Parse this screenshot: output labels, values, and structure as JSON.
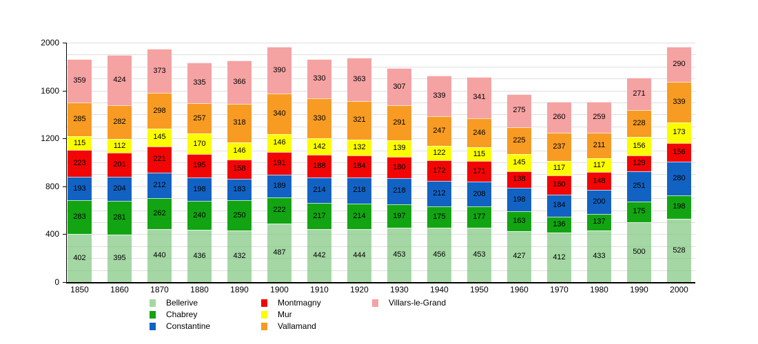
{
  "chart_data": {
    "type": "bar",
    "stacked": true,
    "title": "",
    "xlabel": "",
    "ylabel": "",
    "categories": [
      "1850",
      "1860",
      "1870",
      "1880",
      "1890",
      "1900",
      "1910",
      "1920",
      "1930",
      "1940",
      "1950",
      "1960",
      "1970",
      "1980",
      "1990",
      "2000"
    ],
    "series": [
      {
        "name": "Bellerive",
        "color": "rgba(130,200,130,0.72)",
        "values": [
          402,
          395,
          440,
          436,
          432,
          487,
          442,
          444,
          453,
          456,
          453,
          427,
          412,
          433,
          500,
          528
        ]
      },
      {
        "name": "Chabrey",
        "color": "#12a412",
        "values": [
          283,
          281,
          262,
          240,
          250,
          222,
          217,
          214,
          197,
          175,
          177,
          163,
          136,
          137,
          175,
          198
        ]
      },
      {
        "name": "Constantine",
        "color": "#1262c3",
        "values": [
          193,
          204,
          212,
          198,
          183,
          189,
          214,
          218,
          218,
          212,
          208,
          198,
          184,
          200,
          251,
          280
        ]
      },
      {
        "name": "Montmagny",
        "color": "#f20505",
        "values": [
          223,
          201,
          221,
          195,
          158,
          191,
          188,
          184,
          180,
          172,
          171,
          138,
          160,
          148,
          129,
          156
        ]
      },
      {
        "name": "Mur",
        "color": "#fcfc00",
        "values": [
          115,
          112,
          145,
          170,
          146,
          146,
          142,
          132,
          139,
          122,
          115,
          145,
          117,
          117,
          156,
          173
        ]
      },
      {
        "name": "Vallamand",
        "color": "#f79b23",
        "values": [
          285,
          282,
          298,
          257,
          318,
          340,
          330,
          321,
          291,
          247,
          246,
          225,
          237,
          211,
          228,
          339
        ]
      },
      {
        "name": "Villars-le-Grand",
        "color": "#f5a2a2",
        "values": [
          359,
          424,
          373,
          335,
          366,
          390,
          330,
          363,
          307,
          339,
          341,
          275,
          260,
          259,
          271,
          290
        ]
      }
    ],
    "ylim": [
      0,
      2000
    ],
    "yticks": [
      "0",
      "400",
      "800",
      "1200",
      "1600",
      "2000"
    ],
    "grid": {
      "minor_step": 100,
      "on": true
    },
    "legend_position": "bottom",
    "legend_columns": [
      [
        "Bellerive",
        "Chabrey",
        "Constantine"
      ],
      [
        "Montmagny",
        "Mur",
        "Vallamand"
      ],
      [
        "Villars-le-Grand"
      ]
    ]
  }
}
